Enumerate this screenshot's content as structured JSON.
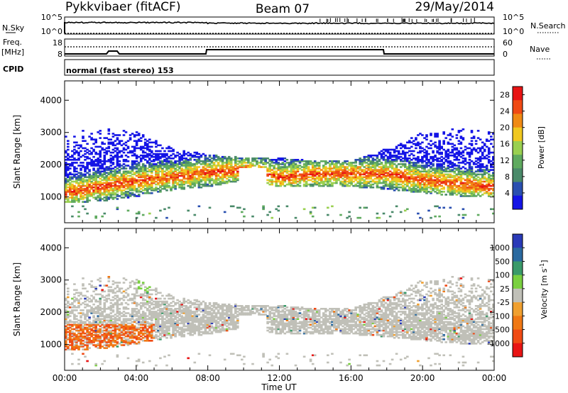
{
  "header": {
    "radar": "Pykkvibaer (fitACF)",
    "beam": "Beam 07",
    "date": "29/May/2014"
  },
  "small_panels": {
    "nsky_label": "N.Sky",
    "nsky_ticks": [
      "10^5",
      "10^0"
    ],
    "nsearch_label": "N.Search",
    "nsearch_ticks": [
      "10^5",
      "10^0"
    ],
    "freq_label": "Freq.",
    "freq_unit": "[MHz]",
    "freq_ticks": [
      "18",
      "8"
    ],
    "nave_label": "Nave",
    "nave_ticks": [
      "60",
      "0"
    ],
    "cpid_label": "CPID",
    "cpid_text": "normal (fast stereo) 153"
  },
  "colors": {
    "power": [
      "#1414e6",
      "#2a4fb0",
      "#4a8a6a",
      "#5faa5f",
      "#9ad050",
      "#f0c820",
      "#f08a14",
      "#f04a14",
      "#e81414"
    ],
    "velocity": [
      "#2a3ab8",
      "#2b6aa0",
      "#3a9a6a",
      "#7ad040",
      "#c0c0b8",
      "#f0a030",
      "#f07814",
      "#f04a14",
      "#e81414"
    ]
  },
  "chart_data": [
    {
      "type": "heatmap",
      "title": "",
      "xlabel": "Time UT",
      "ylabel": "Slant Range [km]",
      "x_ticks": [
        "00:00",
        "04:00",
        "08:00",
        "12:00",
        "16:00",
        "20:00",
        "00:00"
      ],
      "xlim": [
        0,
        24
      ],
      "ylim": [
        200,
        4600
      ],
      "y_ticks": [
        "1000",
        "2000",
        "3000",
        "4000"
      ],
      "colorbar": {
        "label": "Power [dB]",
        "ticks": [
          "4",
          "8",
          "12",
          "16",
          "20",
          "24",
          "28"
        ],
        "range": [
          0,
          30
        ]
      },
      "echo_band": [
        {
          "x": 0,
          "lower": 800,
          "upper": 3100,
          "peak": 1100
        },
        {
          "x": 2,
          "lower": 850,
          "upper": 3100,
          "peak": 1300
        },
        {
          "x": 4,
          "lower": 1000,
          "upper": 3000,
          "peak": 1500
        },
        {
          "x": 6,
          "lower": 1200,
          "upper": 2500,
          "peak": 1600
        },
        {
          "x": 8,
          "lower": 1300,
          "upper": 2300,
          "peak": 1750
        },
        {
          "x": 10,
          "lower": 1500,
          "upper": 2200,
          "peak": 1800
        },
        {
          "x": 12,
          "lower": 1300,
          "upper": 2200,
          "peak": 1600
        },
        {
          "x": 14,
          "lower": 1300,
          "upper": 2100,
          "peak": 1700
        },
        {
          "x": 16,
          "lower": 1300,
          "upper": 2100,
          "peak": 1700
        },
        {
          "x": 18,
          "lower": 1200,
          "upper": 2500,
          "peak": 1700
        },
        {
          "x": 20,
          "lower": 1100,
          "upper": 3000,
          "peak": 1500
        },
        {
          "x": 22,
          "lower": 1000,
          "upper": 3100,
          "peak": 1400
        },
        {
          "x": 24,
          "lower": 1000,
          "upper": 3100,
          "peak": 1300
        }
      ]
    },
    {
      "type": "heatmap",
      "title": "",
      "xlabel": "Time UT",
      "ylabel": "Slant Range [km]",
      "x_ticks": [
        "00:00",
        "04:00",
        "08:00",
        "12:00",
        "16:00",
        "20:00",
        "00:00"
      ],
      "xlim": [
        0,
        24
      ],
      "ylim": [
        200,
        4600
      ],
      "y_ticks": [
        "1000",
        "2000",
        "3000",
        "4000"
      ],
      "colorbar": {
        "label": "Velocity [m s^-1]",
        "ticks": [
          "1000",
          "500",
          "100",
          "25",
          "-25",
          "-100",
          "-500",
          "-1000"
        ]
      },
      "echo_band": "same as power panel; mostly ground scatter (|v| < 25 m/s), with negative velocities (-500 to -1000) at 00:00-05:00 near 800-1500 km"
    }
  ]
}
